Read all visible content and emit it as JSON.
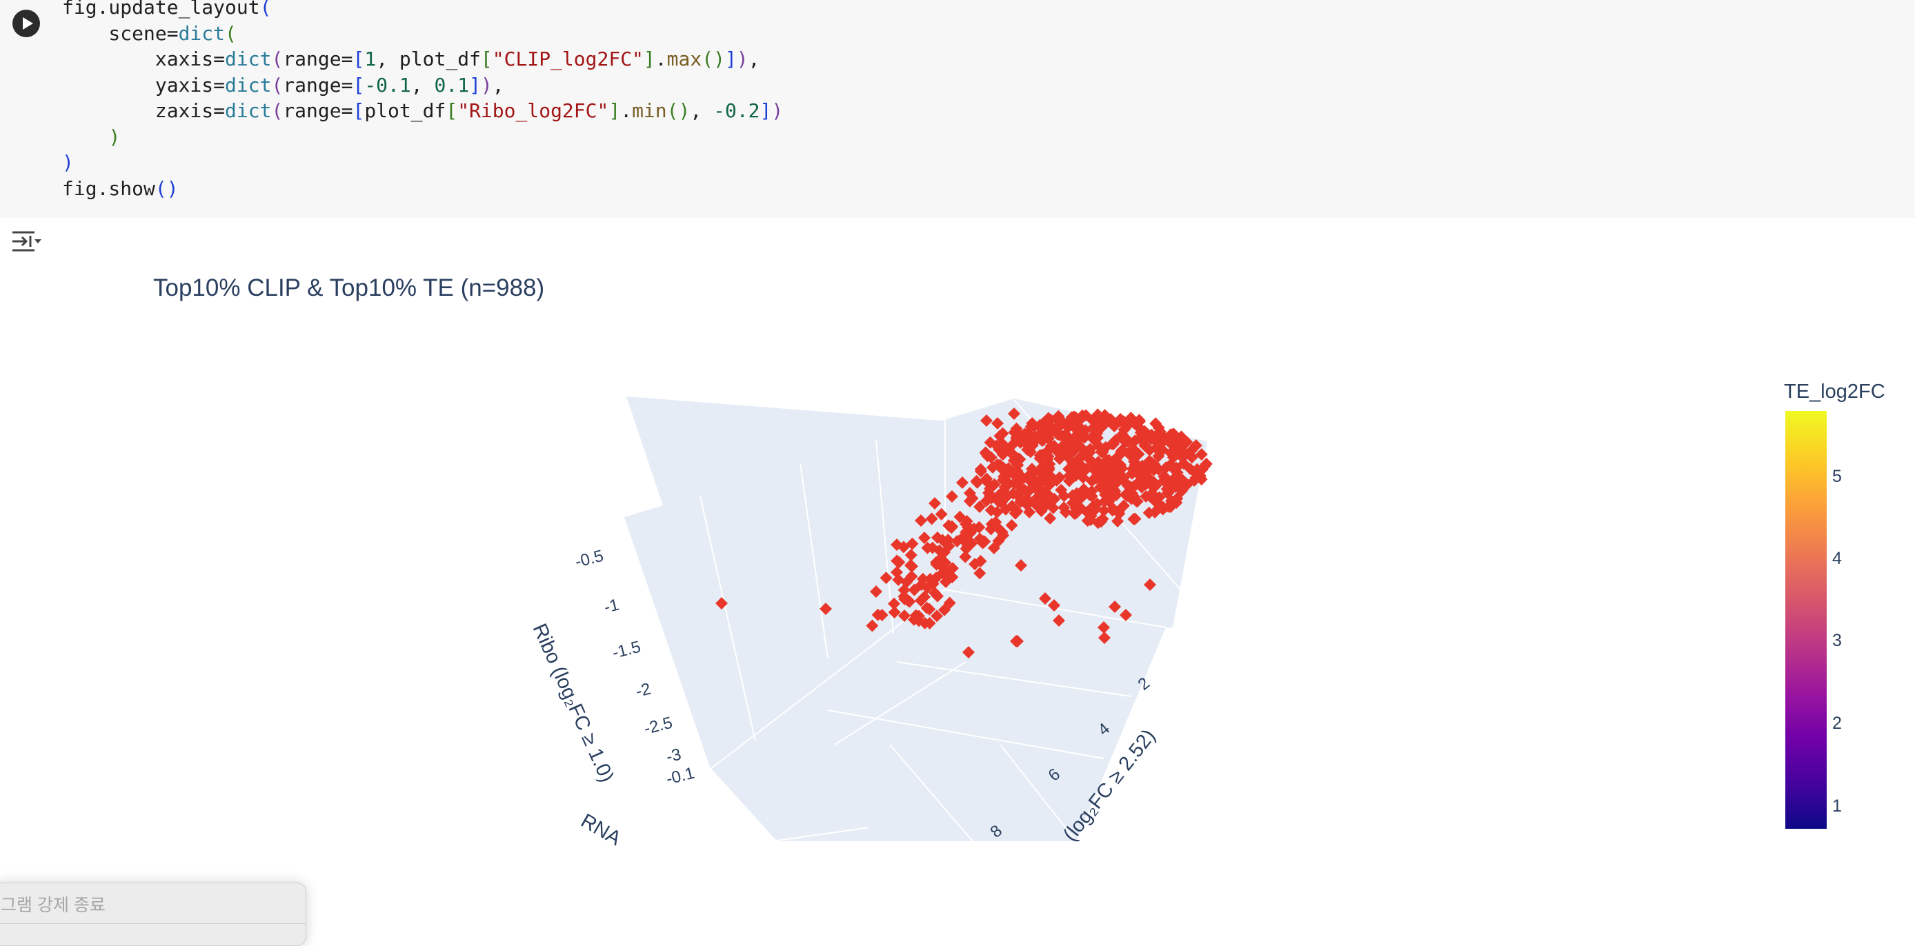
{
  "code_cell": {
    "lines": [
      [
        {
          "t": "fig.update_layout",
          "c": "fn"
        },
        {
          "t": "(",
          "c": "paren1"
        }
      ],
      [
        {
          "t": "    scene=",
          "c": "fn"
        },
        {
          "t": "dict",
          "c": "builtin"
        },
        {
          "t": "(",
          "c": "paren2"
        }
      ],
      [
        {
          "t": "        xaxis=",
          "c": "fn"
        },
        {
          "t": "dict",
          "c": "builtin"
        },
        {
          "t": "(",
          "c": "paren3"
        },
        {
          "t": "range=",
          "c": "fn"
        },
        {
          "t": "[",
          "c": "paren1"
        },
        {
          "t": "1",
          "c": "num"
        },
        {
          "t": ", plot_df",
          "c": "fn"
        },
        {
          "t": "[",
          "c": "paren2"
        },
        {
          "t": "\"CLIP_log2FC\"",
          "c": "str"
        },
        {
          "t": "]",
          "c": "paren2"
        },
        {
          "t": ".",
          "c": "fn"
        },
        {
          "t": "max",
          "c": "method"
        },
        {
          "t": "()",
          "c": "paren2"
        },
        {
          "t": "]",
          "c": "paren1"
        },
        {
          "t": ")",
          "c": "paren3"
        },
        {
          "t": ",",
          "c": "fn"
        }
      ],
      [
        {
          "t": "        yaxis=",
          "c": "fn"
        },
        {
          "t": "dict",
          "c": "builtin"
        },
        {
          "t": "(",
          "c": "paren3"
        },
        {
          "t": "range=",
          "c": "fn"
        },
        {
          "t": "[",
          "c": "paren1"
        },
        {
          "t": "-0.1",
          "c": "num"
        },
        {
          "t": ", ",
          "c": "fn"
        },
        {
          "t": "0.1",
          "c": "num"
        },
        {
          "t": "]",
          "c": "paren1"
        },
        {
          "t": ")",
          "c": "paren3"
        },
        {
          "t": ",",
          "c": "fn"
        }
      ],
      [
        {
          "t": "        zaxis=",
          "c": "fn"
        },
        {
          "t": "dict",
          "c": "builtin"
        },
        {
          "t": "(",
          "c": "paren3"
        },
        {
          "t": "range=",
          "c": "fn"
        },
        {
          "t": "[",
          "c": "paren1"
        },
        {
          "t": "plot_df",
          "c": "fn"
        },
        {
          "t": "[",
          "c": "paren2"
        },
        {
          "t": "\"Ribo_log2FC\"",
          "c": "str"
        },
        {
          "t": "]",
          "c": "paren2"
        },
        {
          "t": ".",
          "c": "fn"
        },
        {
          "t": "min",
          "c": "method"
        },
        {
          "t": "()",
          "c": "paren2"
        },
        {
          "t": ", ",
          "c": "fn"
        },
        {
          "t": "-0.2",
          "c": "num"
        },
        {
          "t": "]",
          "c": "paren1"
        },
        {
          "t": ")",
          "c": "paren3"
        }
      ],
      [
        {
          "t": "    ",
          "c": "fn"
        },
        {
          "t": ")",
          "c": "paren2"
        }
      ],
      [
        {
          "t": ")",
          "c": "paren1"
        }
      ],
      [
        {
          "t": "fig.show",
          "c": "fn"
        },
        {
          "t": "()",
          "c": "paren1"
        }
      ]
    ]
  },
  "output": {
    "title": "Top10% CLIP & Top10% TE (n=988)",
    "colorbar": {
      "title": "TE_log2FC",
      "ticks": [
        "5",
        "4",
        "3",
        "2",
        "1"
      ]
    },
    "scene_axes": {
      "z_title": "Ribo (log₂FC ≥ 1.0)",
      "z_ticks": [
        "-0.5",
        "-1",
        "-1.5",
        "-2",
        "-2.5",
        "-3"
      ],
      "y_tick": "-0.1",
      "y_title_partial": "RNA",
      "x_title_partial": "(log₂FC ≥ 2.52)",
      "x_ticks": [
        "2",
        "4",
        "6",
        "8"
      ]
    },
    "marker_color": "#e8372a"
  },
  "context_menu": {
    "item_label": "그램 강제 종료"
  },
  "colors": {
    "scene_bg": "#e5ecf6",
    "grid": "#ffffff",
    "axis_text": "#2a3f5f"
  }
}
